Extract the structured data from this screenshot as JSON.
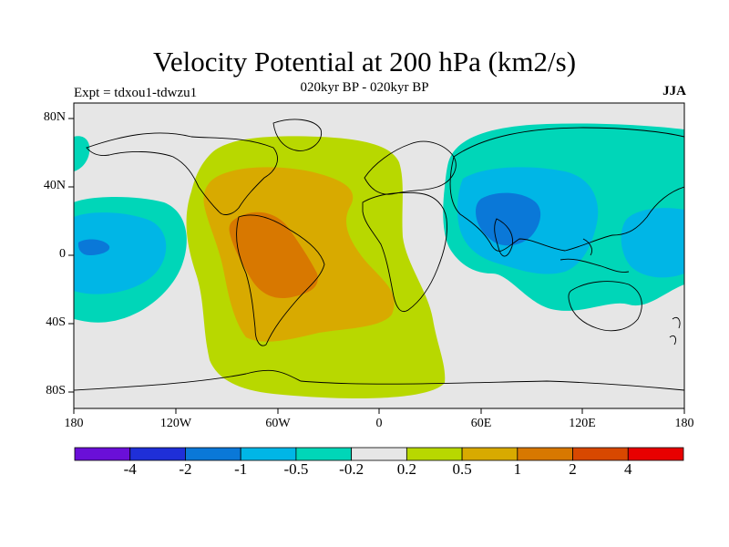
{
  "title": "Velocity Potential at 200 hPa (km2/s)",
  "subtitle": "020kyr BP - 020kyr BP",
  "experiment": "Expt = tdxou1-tdwzu1",
  "season": "JJA",
  "map": {
    "lat_ticks": [
      "80N",
      "40N",
      "0",
      "40S",
      "80S"
    ],
    "lon_ticks": [
      "180",
      "120W",
      "60W",
      "0",
      "60E",
      "120E",
      "180"
    ],
    "lon_range": [
      -180,
      180
    ],
    "lat_range": [
      -90,
      90
    ]
  },
  "colorbar": {
    "colors": [
      "#6a0fd8",
      "#1f2fd8",
      "#0a78d8",
      "#00b6e6",
      "#00d6b8",
      "#e6e6e6",
      "#b8d800",
      "#d8aa00",
      "#d87800",
      "#d84800",
      "#e80000"
    ],
    "labels": [
      "-4",
      "-2",
      "-1",
      "-0.5",
      "-0.2",
      "0.2",
      "0.5",
      "1",
      "2",
      "4"
    ]
  },
  "colors": {
    "neutral": "#e6e6e6",
    "weak_pos": "#b8d800",
    "mid_pos": "#d8aa00",
    "strong_pos": "#d87800",
    "weak_neg": "#00d6b8",
    "mid_neg": "#00b6e6",
    "strong_neg": "#0a78d8"
  }
}
